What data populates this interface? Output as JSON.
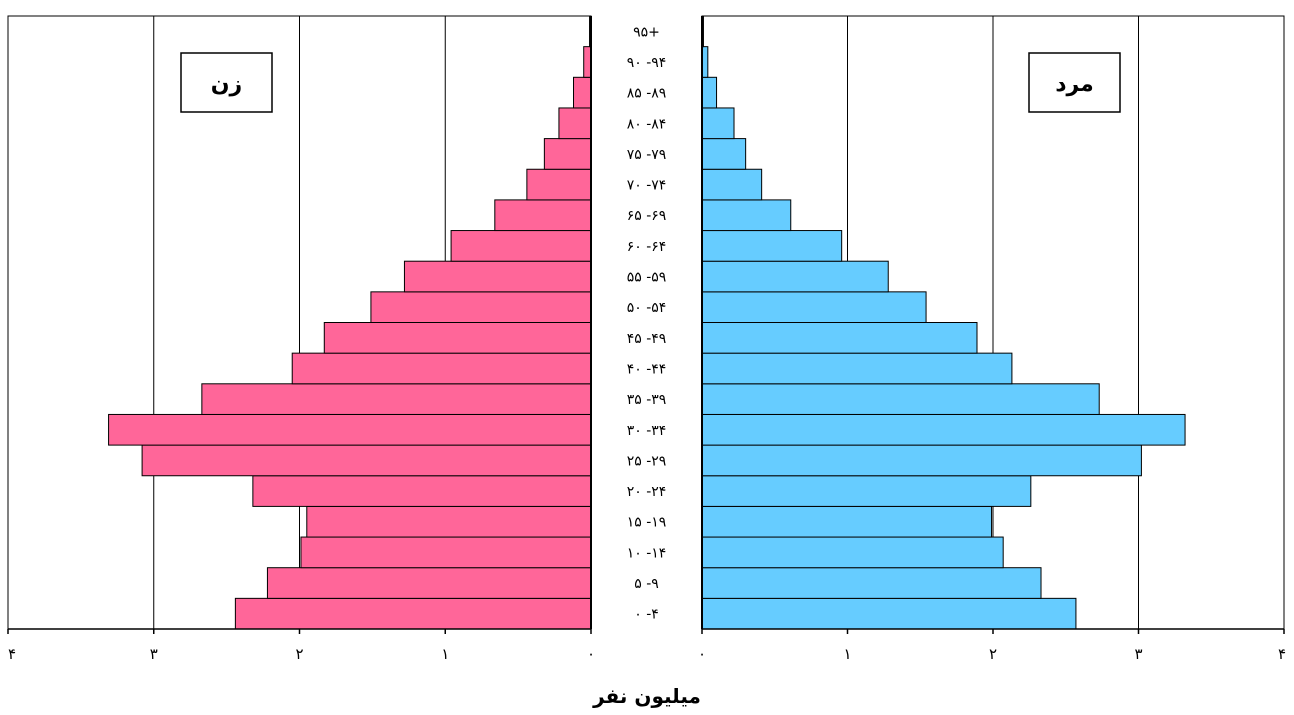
{
  "chart_data": {
    "type": "bar",
    "subtype": "population-pyramid",
    "xlabel": "میلیون نفر",
    "age_groups": [
      "۰ -۴",
      "۵ -۹",
      "۱۰ -۱۴",
      "۱۵ -۱۹",
      "۲۰ -۲۴",
      "۲۵ -۲۹",
      "۳۰ -۳۴",
      "۳۵ -۳۹",
      "۴۰ -۴۴",
      "۴۵ -۴۹",
      "۵۰ -۵۴",
      "۵۵ -۵۹",
      "۶۰ -۶۴",
      "۶۵ -۶۹",
      "۷۰ -۷۴",
      "۷۵ -۷۹",
      "۸۰ -۸۴",
      "۸۵ -۸۹",
      "۹۰ -۹۴",
      "۹۵+"
    ],
    "series": [
      {
        "name": "زن",
        "side": "left",
        "color": "#ff6699",
        "values": [
          2.44,
          2.22,
          1.99,
          1.95,
          2.32,
          3.08,
          3.31,
          2.67,
          2.05,
          1.83,
          1.51,
          1.28,
          0.96,
          0.66,
          0.44,
          0.32,
          0.22,
          0.12,
          0.05,
          0.01
        ]
      },
      {
        "name": "مرد",
        "side": "right",
        "color": "#66ccff",
        "values": [
          2.57,
          2.33,
          2.07,
          1.99,
          2.26,
          3.02,
          3.32,
          2.73,
          2.13,
          1.89,
          1.54,
          1.28,
          0.96,
          0.61,
          0.41,
          0.3,
          0.22,
          0.1,
          0.04,
          0.01
        ]
      }
    ],
    "xlim": [
      0,
      4
    ],
    "ticks": [
      {
        "value": 0,
        "label": "۰"
      },
      {
        "value": 1,
        "label": "۱"
      },
      {
        "value": 2,
        "label": "۲"
      },
      {
        "value": 3,
        "label": "۳"
      },
      {
        "value": 4,
        "label": "۴"
      }
    ],
    "grid": true
  }
}
